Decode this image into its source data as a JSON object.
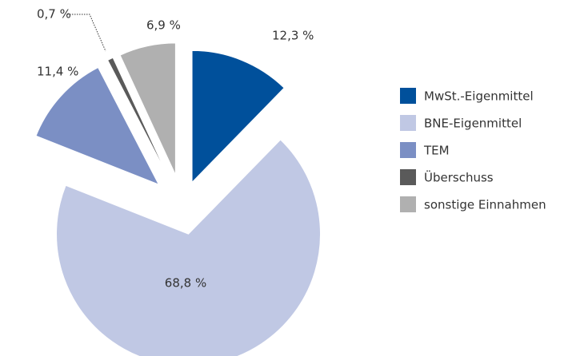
{
  "chart_data": {
    "type": "pie",
    "categories": [
      "MwSt.-Eigenmittel",
      "BNE-Eigenmittel",
      "TEM",
      "Überschuss",
      "sonstige Einnahmen"
    ],
    "values": [
      12.3,
      68.8,
      11.4,
      0.7,
      6.9
    ],
    "value_labels": [
      "12,3 %",
      "68,8 %",
      "11,4 %",
      "0,7 %",
      "6,9 %"
    ],
    "colors": [
      "#00509b",
      "#c0c8e4",
      "#7b8fc4",
      "#5a5a5a",
      "#b0b0b0"
    ],
    "legend": "right"
  }
}
